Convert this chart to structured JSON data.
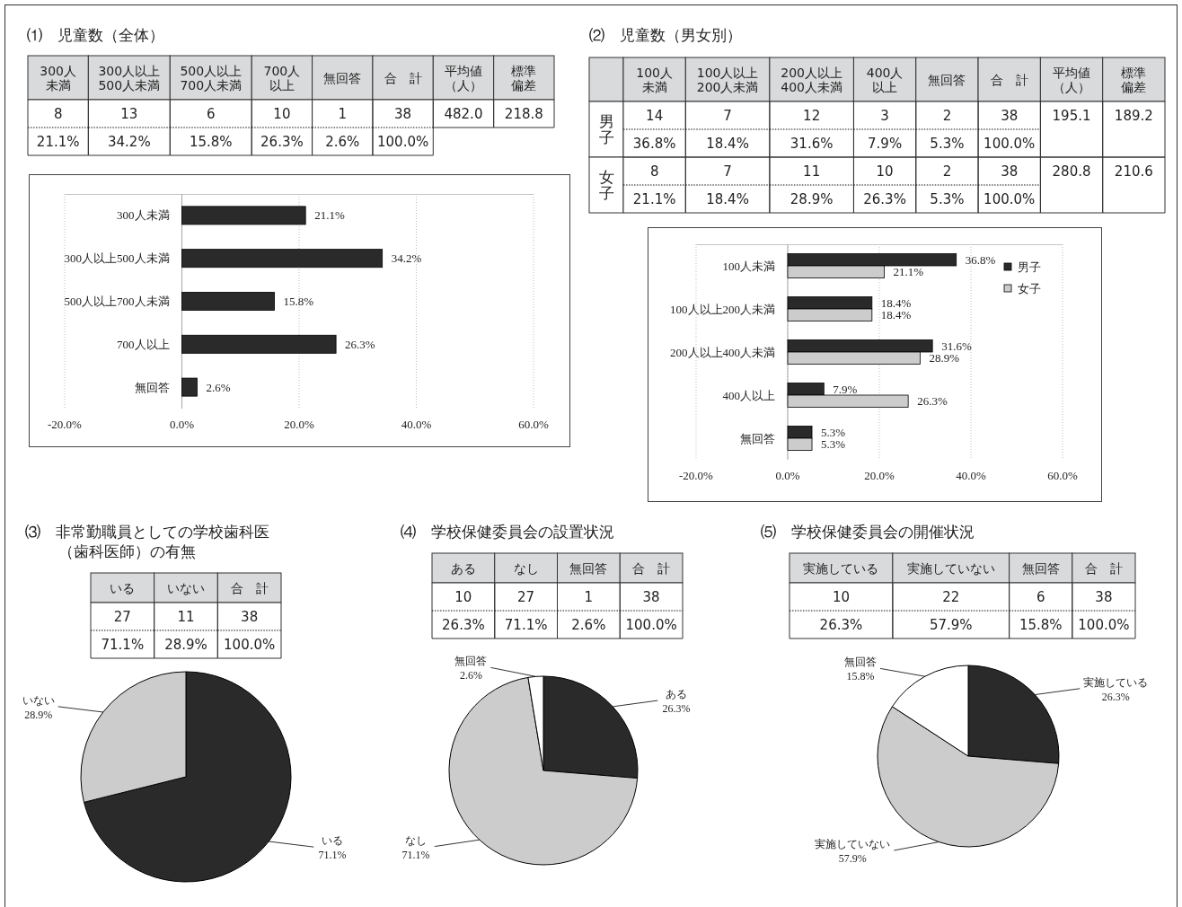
{
  "chart_data": [
    {
      "type": "other",
      "title": "⑴　児童数（全体）",
      "categories": [
        "300人未満",
        "300人以上500人未満",
        "500人以上700人未満",
        "700人以上",
        "無回答",
        "合　計",
        "平均値（人）",
        "標準偏差"
      ],
      "series": [
        {
          "values": [
            8,
            13,
            6,
            10,
            1,
            38,
            482.0,
            218.8
          ],
          "value_labels": [
            "8",
            "13",
            "6",
            "10",
            "1",
            "38",
            "482.0",
            "218.8"
          ]
        },
        {
          "values": [
            21.1,
            34.2,
            15.8,
            26.3,
            2.6,
            100.0,
            null,
            null
          ],
          "value_labels": [
            "21.1%",
            "34.2%",
            "15.8%",
            "26.3%",
            "2.6%",
            "100.0%",
            null,
            null
          ]
        }
      ]
    },
    {
      "type": "bar",
      "orientation": "horizontal",
      "categories": [
        "300人未満",
        "300人以上500人未満",
        "500人以上700人未満",
        "700人以上",
        "無回答"
      ],
      "values": [
        21.1,
        34.2,
        15.8,
        26.3,
        2.6
      ],
      "color": "#2a2a2a",
      "value_labels": [
        "21.1%",
        "34.2%",
        "15.8%",
        "26.3%",
        "2.6%"
      ],
      "xlim": [
        -20,
        60
      ],
      "xticks": [
        {
          "value": -20,
          "label": "-20.0%"
        },
        {
          "value": 0,
          "label": "0.0%"
        },
        {
          "value": 20,
          "label": "20.0%"
        },
        {
          "value": 40,
          "label": "40.0%"
        },
        {
          "value": 60,
          "label": "60.0%"
        }
      ],
      "grid": "x"
    },
    {
      "type": "other",
      "title": "⑵　児童数（男女別）",
      "categories": [
        "100人未満",
        "100人以上200人未満",
        "200人以上400人未満",
        "400人以上",
        "無回答",
        "合　計",
        "平均値（人）",
        "標準偏差"
      ],
      "series": [
        {
          "name": "男子",
          "values": [
            14,
            7,
            12,
            3,
            2,
            38,
            195.1,
            189.2
          ],
          "value_labels": [
            "14",
            "7",
            "12",
            "3",
            "2",
            "38",
            "195.1",
            "189.2"
          ]
        },
        {
          "values": [
            36.8,
            18.4,
            31.6,
            7.9,
            5.3,
            100.0,
            null,
            null
          ],
          "value_labels": [
            "36.8%",
            "18.4%",
            "31.6%",
            "7.9%",
            "5.3%",
            "100.0%",
            null,
            null
          ]
        },
        {
          "name": "女子",
          "values": [
            8,
            7,
            11,
            10,
            2,
            38,
            280.8,
            210.6
          ],
          "value_labels": [
            "8",
            "7",
            "11",
            "10",
            "2",
            "38",
            "280.8",
            "210.6"
          ]
        },
        {
          "values": [
            21.1,
            18.4,
            28.9,
            26.3,
            5.3,
            100.0,
            null,
            null
          ],
          "value_labels": [
            "21.1%",
            "18.4%",
            "28.9%",
            "26.3%",
            "5.3%",
            "100.0%",
            null,
            null
          ]
        }
      ]
    },
    {
      "type": "bar",
      "orientation": "horizontal",
      "categories": [
        "100人未満",
        "100人以上200人未満",
        "200人以上400人未満",
        "400人以上",
        "無回答"
      ],
      "series": [
        {
          "name": "男子",
          "color": "#2a2a2a",
          "values": [
            36.8,
            18.4,
            31.6,
            7.9,
            5.3
          ],
          "value_labels": [
            "36.8%",
            "18.4%",
            "31.6%",
            "7.9%",
            "5.3%"
          ]
        },
        {
          "name": "女子",
          "color": "#cccccc",
          "values": [
            21.1,
            18.4,
            28.9,
            26.3,
            5.3
          ],
          "value_labels": [
            "21.1%",
            "18.4%",
            "28.9%",
            "26.3%",
            "5.3%"
          ]
        }
      ],
      "xlim": [
        -20,
        60
      ],
      "xticks": [
        {
          "value": -20,
          "label": "-20.0%"
        },
        {
          "value": 0,
          "label": "0.0%"
        },
        {
          "value": 20,
          "label": "20.0%"
        },
        {
          "value": 40,
          "label": "40.0%"
        },
        {
          "value": 60,
          "label": "60.0%"
        }
      ],
      "grid": "x",
      "legend": "top right"
    },
    {
      "type": "other",
      "title": "⑶　非常勤職員としての学校歯科医（歯科医師）の有無",
      "categories": [
        "いる",
        "いない",
        "合　計"
      ],
      "series": [
        {
          "values": [
            27,
            11,
            38
          ],
          "value_labels": [
            "27",
            "11",
            "38"
          ]
        },
        {
          "values": [
            71.1,
            28.9,
            100.0
          ],
          "value_labels": [
            "71.1%",
            "28.9%",
            "100.0%"
          ]
        }
      ]
    },
    {
      "type": "pie",
      "categories": [
        "いる",
        "いない"
      ],
      "values": [
        71.1,
        28.9
      ],
      "colors": [
        "#2a2a2a",
        "#cccccc"
      ],
      "value_labels": [
        "71.1%",
        "28.9%"
      ]
    },
    {
      "type": "other",
      "title": "⑷　学校保健委員会の設置状況",
      "categories": [
        "ある",
        "なし",
        "無回答",
        "合　計"
      ],
      "series": [
        {
          "values": [
            10,
            27,
            1,
            38
          ],
          "value_labels": [
            "10",
            "27",
            "1",
            "38"
          ]
        },
        {
          "values": [
            26.3,
            71.1,
            2.6,
            100.0
          ],
          "value_labels": [
            "26.3%",
            "71.1%",
            "2.6%",
            "100.0%"
          ]
        }
      ]
    },
    {
      "type": "pie",
      "categories": [
        "ある",
        "なし",
        "無回答"
      ],
      "values": [
        26.3,
        71.1,
        2.6
      ],
      "colors": [
        "#2a2a2a",
        "#cccccc",
        "#ffffff"
      ],
      "value_labels": [
        "26.3%",
        "71.1%",
        "2.6%"
      ]
    },
    {
      "type": "other",
      "title": "⑸　学校保健委員会の開催状況",
      "categories": [
        "実施している",
        "実施していない",
        "無回答",
        "合　計"
      ],
      "series": [
        {
          "values": [
            10,
            22,
            6,
            38
          ],
          "value_labels": [
            "10",
            "22",
            "6",
            "38"
          ]
        },
        {
          "values": [
            26.3,
            57.9,
            15.8,
            100.0
          ],
          "value_labels": [
            "26.3%",
            "57.9%",
            "15.8%",
            "100.0%"
          ]
        }
      ]
    },
    {
      "type": "pie",
      "categories": [
        "実施している",
        "実施していない",
        "無回答"
      ],
      "values": [
        26.3,
        57.9,
        15.8
      ],
      "colors": [
        "#2a2a2a",
        "#cccccc",
        "#ffffff"
      ],
      "value_labels": [
        "26.3%",
        "57.9%",
        "15.8%"
      ]
    }
  ]
}
